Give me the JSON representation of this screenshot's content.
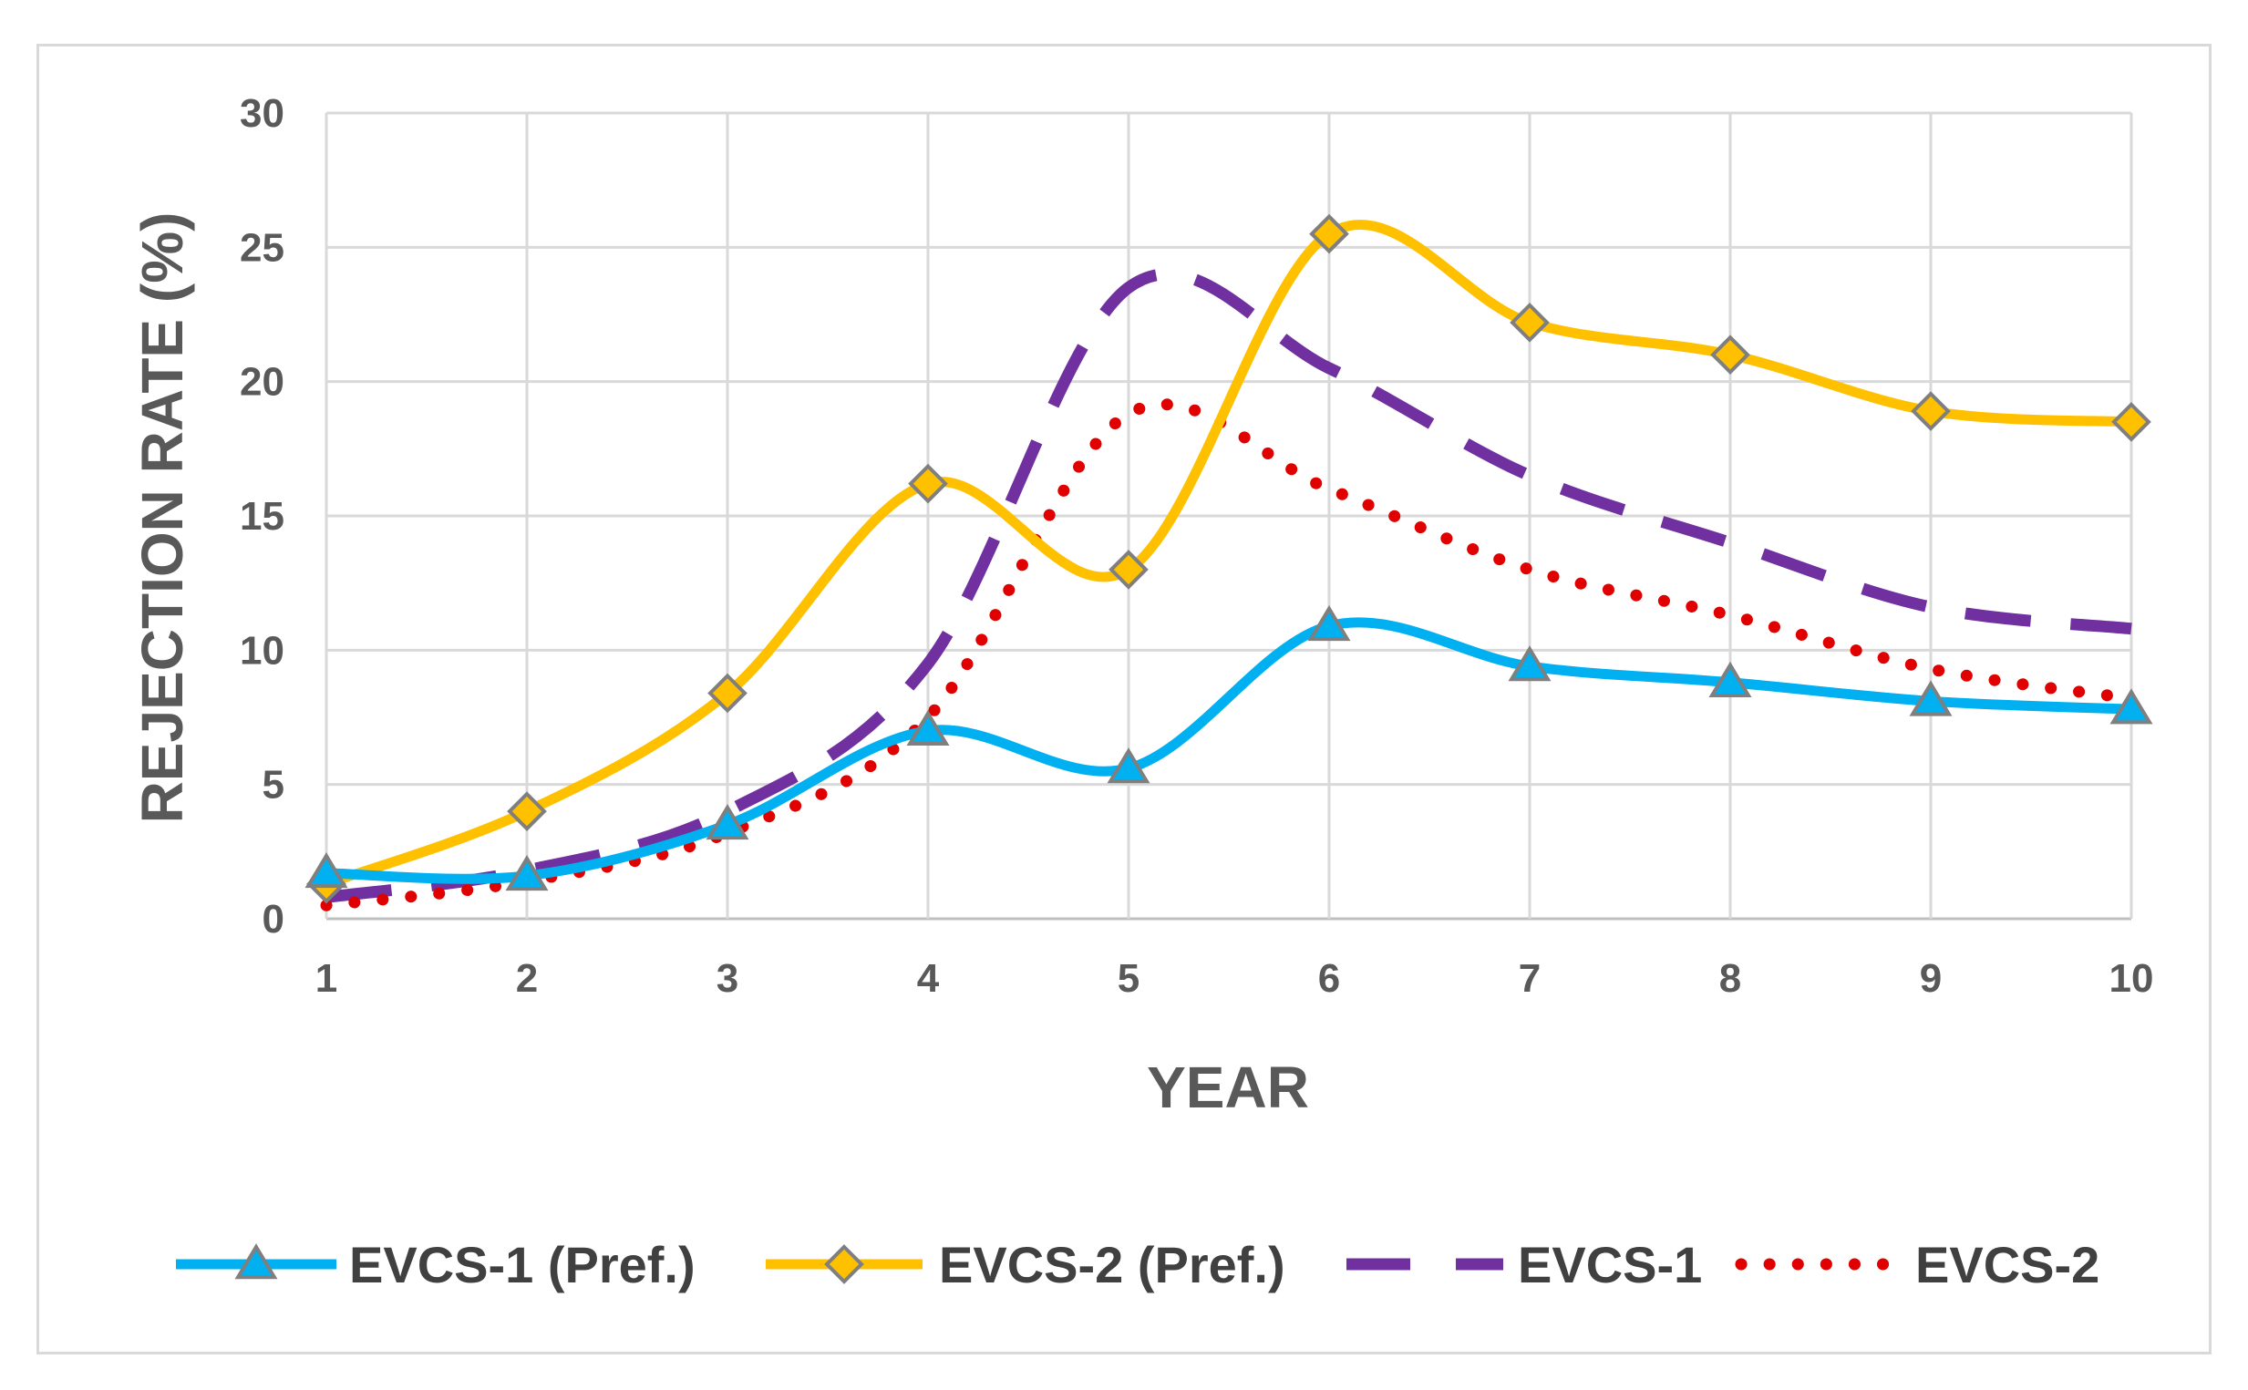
{
  "chart_data": {
    "type": "line",
    "title": "",
    "xlabel": "YEAR",
    "ylabel": "REJECTION RATE (%)",
    "x": [
      1,
      2,
      3,
      4,
      5,
      6,
      7,
      8,
      9,
      10
    ],
    "x_tick_labels": [
      "1",
      "2",
      "3",
      "4",
      "5",
      "6",
      "7",
      "8",
      "9",
      "10"
    ],
    "ylim": [
      0,
      30
    ],
    "y_ticks": [
      0,
      5,
      10,
      15,
      20,
      25,
      30
    ],
    "y_tick_labels": [
      "0",
      "5",
      "10",
      "15",
      "20",
      "25",
      "30"
    ],
    "grid": true,
    "legend_position": "bottom",
    "series": [
      {
        "name": "EVCS-1 (Pref.)",
        "color": "#00b0f0",
        "style": "solid",
        "marker": "triangle",
        "values": [
          1.7,
          1.6,
          3.5,
          7.0,
          5.6,
          10.9,
          9.4,
          8.8,
          8.1,
          7.8
        ]
      },
      {
        "name": "EVCS-2 (Pref.)",
        "color": "#ffc000",
        "style": "solid",
        "marker": "diamond",
        "values": [
          1.3,
          4.0,
          8.4,
          16.2,
          13.0,
          25.5,
          22.2,
          21.0,
          18.9,
          18.5
        ]
      },
      {
        "name": "EVCS-1",
        "color": "#7030a0",
        "style": "dashed",
        "marker": "none",
        "values": [
          0.8,
          1.8,
          4.0,
          9.5,
          23.5,
          20.5,
          16.5,
          14.0,
          11.6,
          10.8
        ]
      },
      {
        "name": "EVCS-2",
        "color": "#e00000",
        "style": "dotted",
        "marker": "none",
        "values": [
          0.5,
          1.4,
          3.2,
          7.5,
          18.8,
          16.0,
          13.0,
          11.3,
          9.3,
          8.2
        ]
      }
    ]
  }
}
